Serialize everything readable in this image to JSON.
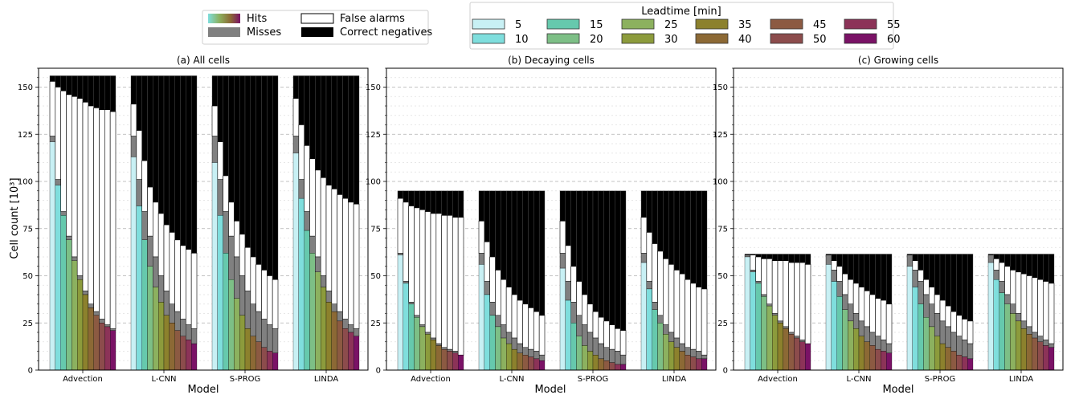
{
  "legend_left": {
    "items": [
      {
        "label": "Hits",
        "kind": "gradient"
      },
      {
        "label": "Misses",
        "color": "#808080"
      },
      {
        "label": "False alarms",
        "color": "#ffffff"
      },
      {
        "label": "Correct negatives",
        "color": "#000000"
      }
    ]
  },
  "legend_leadtime": {
    "title": "Leadtime [min]",
    "items": [
      {
        "label": "5",
        "color": "#c8f0f4"
      },
      {
        "label": "10",
        "color": "#7fdedd"
      },
      {
        "label": "15",
        "color": "#66c9ad"
      },
      {
        "label": "20",
        "color": "#7dbf86"
      },
      {
        "label": "25",
        "color": "#8cb15f"
      },
      {
        "label": "30",
        "color": "#8c9b3c"
      },
      {
        "label": "35",
        "color": "#8c812d"
      },
      {
        "label": "40",
        "color": "#8c6935"
      },
      {
        "label": "45",
        "color": "#8c5a42"
      },
      {
        "label": "50",
        "color": "#8c4c4c"
      },
      {
        "label": "55",
        "color": "#8c3358"
      },
      {
        "label": "60",
        "color": "#7a1266"
      }
    ]
  },
  "axes": {
    "ylabel": "Cell count [10³]",
    "xlabel": "Model",
    "yticks": [
      "0",
      "25",
      "50",
      "75",
      "100",
      "125",
      "150"
    ]
  },
  "chart_data": [
    {
      "type": "bar",
      "title": "(a) All cells",
      "categories": [
        "Advection",
        "L-CNN",
        "S-PROG",
        "LINDA"
      ],
      "leadtimes_min": [
        5,
        10,
        15,
        20,
        25,
        30,
        35,
        40,
        45,
        50,
        55,
        60
      ],
      "ylim": [
        0,
        160
      ],
      "total": 156,
      "hits": {
        "Advection": [
          121,
          98,
          82,
          69,
          58,
          48,
          40,
          33,
          29,
          25,
          23,
          21
        ],
        "L-CNN": [
          113,
          87,
          69,
          55,
          44,
          36,
          29,
          25,
          21,
          18,
          16,
          14
        ],
        "S-PROG": [
          110,
          82,
          62,
          48,
          38,
          29,
          22,
          18,
          15,
          12,
          10,
          9
        ],
        "LINDA": [
          115,
          91,
          74,
          62,
          52,
          44,
          36,
          31,
          26,
          22,
          20,
          18
        ]
      },
      "hits_plus_misses": {
        "Advection": [
          124,
          101,
          84,
          71,
          60,
          50,
          42,
          35,
          31,
          27,
          24,
          22
        ],
        "L-CNN": [
          124,
          101,
          84,
          71,
          60,
          50,
          42,
          35,
          31,
          27,
          24,
          22
        ],
        "S-PROG": [
          124,
          101,
          84,
          71,
          60,
          50,
          42,
          35,
          31,
          27,
          24,
          22
        ],
        "LINDA": [
          124,
          101,
          84,
          71,
          60,
          50,
          42,
          35,
          31,
          27,
          24,
          22
        ]
      },
      "plus_false_alarms": {
        "Advection": [
          153,
          150,
          148,
          146,
          145,
          144,
          142,
          140,
          139,
          138,
          138,
          137
        ],
        "L-CNN": [
          141,
          127,
          111,
          97,
          89,
          83,
          77,
          73,
          69,
          66,
          64,
          62
        ],
        "S-PROG": [
          140,
          121,
          103,
          89,
          79,
          72,
          65,
          60,
          56,
          53,
          50,
          48
        ],
        "LINDA": [
          144,
          130,
          119,
          112,
          106,
          102,
          98,
          96,
          93,
          91,
          89,
          88
        ]
      }
    },
    {
      "type": "bar",
      "title": "(b) Decaying cells",
      "categories": [
        "Advection",
        "L-CNN",
        "S-PROG",
        "LINDA"
      ],
      "leadtimes_min": [
        5,
        10,
        15,
        20,
        25,
        30,
        35,
        40,
        45,
        50,
        55,
        60
      ],
      "ylim": [
        0,
        160
      ],
      "total": 95,
      "hits": {
        "Advection": [
          61,
          46,
          35,
          28,
          23,
          19,
          16,
          13,
          11,
          10,
          9,
          8
        ],
        "L-CNN": [
          56,
          40,
          29,
          23,
          17,
          14,
          11,
          9,
          8,
          7,
          6,
          5
        ],
        "S-PROG": [
          54,
          37,
          25,
          18,
          13,
          10,
          8,
          6,
          5,
          4,
          3,
          3
        ],
        "LINDA": [
          57,
          43,
          32,
          25,
          19,
          15,
          12,
          10,
          8,
          7,
          6,
          6
        ]
      },
      "hits_plus_misses": {
        "Advection": [
          62,
          47,
          36,
          29,
          24,
          20,
          17,
          14,
          12,
          11,
          10,
          8
        ],
        "L-CNN": [
          62,
          47,
          36,
          29,
          24,
          20,
          17,
          14,
          12,
          11,
          10,
          8
        ],
        "S-PROG": [
          62,
          47,
          36,
          29,
          24,
          20,
          17,
          14,
          12,
          11,
          10,
          8
        ],
        "LINDA": [
          62,
          47,
          36,
          29,
          24,
          20,
          17,
          14,
          12,
          11,
          10,
          8
        ]
      },
      "plus_false_alarms": {
        "Advection": [
          91,
          89,
          87,
          86,
          85,
          84,
          83,
          83,
          82,
          82,
          81,
          81
        ],
        "L-CNN": [
          79,
          68,
          60,
          53,
          48,
          44,
          40,
          37,
          35,
          33,
          31,
          29
        ],
        "S-PROG": [
          79,
          66,
          55,
          47,
          40,
          35,
          31,
          28,
          26,
          24,
          22,
          21
        ],
        "LINDA": [
          81,
          73,
          67,
          63,
          59,
          56,
          53,
          51,
          48,
          46,
          44,
          43
        ]
      }
    },
    {
      "type": "bar",
      "title": "(c) Growing cells",
      "categories": [
        "Advection",
        "L-CNN",
        "S-PROG",
        "LINDA"
      ],
      "leadtimes_min": [
        5,
        10,
        15,
        20,
        25,
        30,
        35,
        40,
        45,
        50,
        55,
        60
      ],
      "ylim": [
        0,
        160
      ],
      "total": 61.5,
      "hits": {
        "Advection": [
          60,
          52,
          46,
          39,
          34,
          29,
          25,
          22,
          19,
          17,
          15,
          14
        ],
        "L-CNN": [
          56,
          47,
          39,
          32,
          26,
          22,
          18,
          15,
          13,
          11,
          10,
          9
        ],
        "S-PROG": [
          55,
          44,
          35,
          28,
          23,
          18,
          14,
          12,
          10,
          8,
          7,
          6
        ],
        "LINDA": [
          57,
          48,
          41,
          35,
          30,
          26,
          22,
          19,
          17,
          15,
          13,
          12
        ]
      },
      "hits_plus_misses": {
        "Advection": [
          61,
          53,
          47,
          40,
          35,
          30,
          26,
          23,
          20,
          18,
          16,
          14
        ],
        "L-CNN": [
          61,
          53,
          47,
          40,
          35,
          30,
          26,
          23,
          20,
          18,
          16,
          14
        ],
        "S-PROG": [
          61,
          53,
          47,
          40,
          35,
          30,
          26,
          23,
          20,
          18,
          16,
          14
        ],
        "LINDA": [
          61,
          53,
          47,
          40,
          35,
          30,
          26,
          23,
          20,
          18,
          16,
          14
        ]
      },
      "plus_false_alarms": {
        "Advection": [
          61,
          61,
          60,
          59,
          59,
          58,
          58,
          58,
          57,
          57,
          57,
          56
        ],
        "L-CNN": [
          60,
          58,
          55,
          51,
          48,
          46,
          44,
          42,
          40,
          38,
          37,
          35
        ],
        "S-PROG": [
          60,
          58,
          53,
          48,
          44,
          40,
          37,
          34,
          31,
          29,
          27,
          26
        ],
        "LINDA": [
          61,
          59,
          57,
          55,
          53,
          52,
          51,
          50,
          49,
          48,
          47,
          46
        ]
      }
    }
  ]
}
